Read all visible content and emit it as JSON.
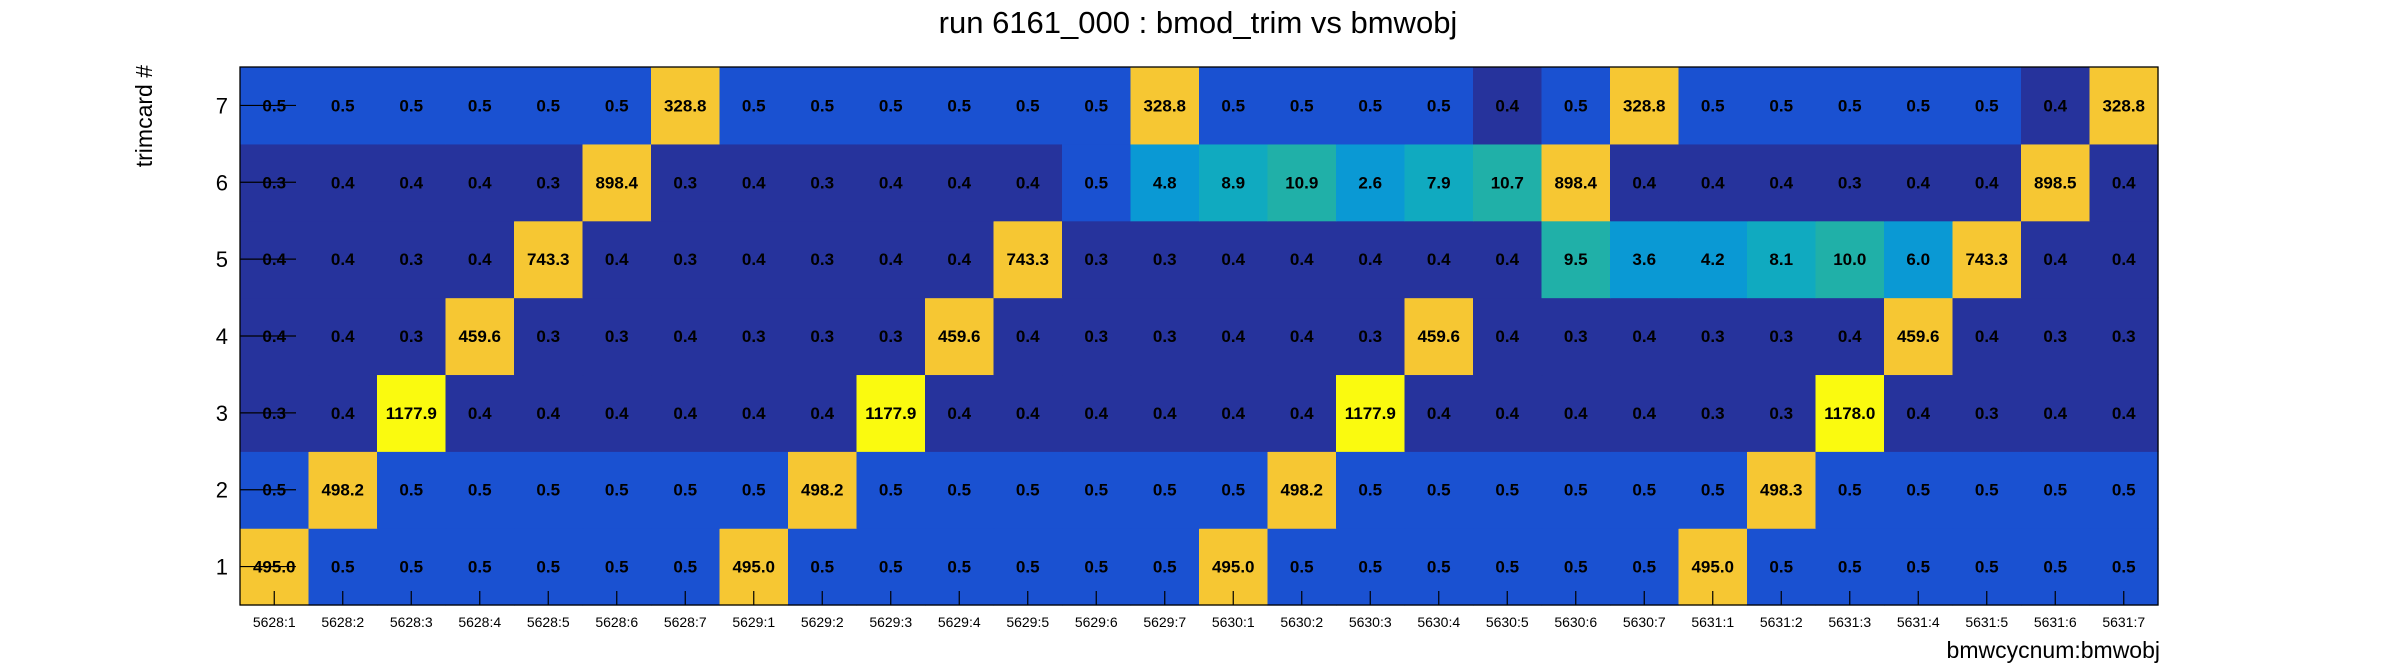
{
  "chart_data": {
    "type": "heatmap",
    "title": "run 6161_000 : bmod_trim vs bmwobj",
    "xlabel": "bmwcycnum:bmwobj",
    "ylabel": "trimcard #",
    "x_categories": [
      "5628:1",
      "5628:2",
      "5628:3",
      "5628:4",
      "5628:5",
      "5628:6",
      "5628:7",
      "5629:1",
      "5629:2",
      "5629:3",
      "5629:4",
      "5629:5",
      "5629:6",
      "5629:7",
      "5630:1",
      "5630:2",
      "5630:3",
      "5630:4",
      "5630:5",
      "5630:6",
      "5630:7",
      "5631:1",
      "5631:2",
      "5631:3",
      "5631:4",
      "5631:5",
      "5631:6",
      "5631:7"
    ],
    "y_categories": [
      "1",
      "2",
      "3",
      "4",
      "5",
      "6",
      "7"
    ],
    "values": [
      [
        495.0,
        0.5,
        0.5,
        0.5,
        0.5,
        0.5,
        0.5,
        495.0,
        0.5,
        0.5,
        0.5,
        0.5,
        0.5,
        0.5,
        495.0,
        0.5,
        0.5,
        0.5,
        0.5,
        0.5,
        0.5,
        495.0,
        0.5,
        0.5,
        0.5,
        0.5,
        0.5,
        0.5
      ],
      [
        0.5,
        498.2,
        0.5,
        0.5,
        0.5,
        0.5,
        0.5,
        0.5,
        498.2,
        0.5,
        0.5,
        0.5,
        0.5,
        0.5,
        0.5,
        498.2,
        0.5,
        0.5,
        0.5,
        0.5,
        0.5,
        0.5,
        498.3,
        0.5,
        0.5,
        0.5,
        0.5,
        0.5
      ],
      [
        0.3,
        0.4,
        1177.9,
        0.4,
        0.4,
        0.4,
        0.4,
        0.4,
        0.4,
        1177.9,
        0.4,
        0.4,
        0.4,
        0.4,
        0.4,
        0.4,
        1177.9,
        0.4,
        0.4,
        0.4,
        0.4,
        0.3,
        0.3,
        1178.0,
        0.4,
        0.3,
        0.4,
        0.4
      ],
      [
        0.4,
        0.4,
        0.3,
        459.6,
        0.3,
        0.3,
        0.4,
        0.3,
        0.3,
        0.3,
        459.6,
        0.4,
        0.3,
        0.3,
        0.4,
        0.4,
        0.3,
        459.6,
        0.4,
        0.3,
        0.4,
        0.3,
        0.3,
        0.4,
        459.6,
        0.4,
        0.3,
        0.3
      ],
      [
        0.4,
        0.4,
        0.3,
        0.4,
        743.3,
        0.4,
        0.3,
        0.4,
        0.3,
        0.4,
        0.4,
        743.3,
        0.3,
        0.3,
        0.4,
        0.4,
        0.4,
        0.4,
        0.4,
        9.5,
        3.6,
        4.2,
        8.1,
        10.0,
        6.0,
        743.3,
        0.4,
        0.4
      ],
      [
        0.3,
        0.4,
        0.4,
        0.4,
        0.3,
        898.4,
        0.3,
        0.4,
        0.3,
        0.4,
        0.4,
        0.4,
        0.5,
        4.8,
        8.9,
        10.9,
        2.6,
        7.9,
        10.7,
        898.4,
        0.4,
        0.4,
        0.4,
        0.3,
        0.4,
        0.4,
        898.5,
        0.4
      ],
      [
        0.5,
        0.5,
        0.5,
        0.5,
        0.5,
        0.5,
        328.8,
        0.5,
        0.5,
        0.5,
        0.5,
        0.5,
        0.5,
        328.8,
        0.5,
        0.5,
        0.5,
        0.5,
        0.4,
        0.5,
        328.8,
        0.5,
        0.5,
        0.5,
        0.5,
        0.5,
        0.4,
        328.8
      ]
    ],
    "color_scale": {
      "lowest": "#26339c",
      "low": "#1a51d1",
      "small": [
        "#0a99d4",
        "#10aac0",
        "#20b0a8"
      ],
      "mid": "#f6c733",
      "high": "#fafa0f"
    },
    "grid": false,
    "legend": "none"
  }
}
